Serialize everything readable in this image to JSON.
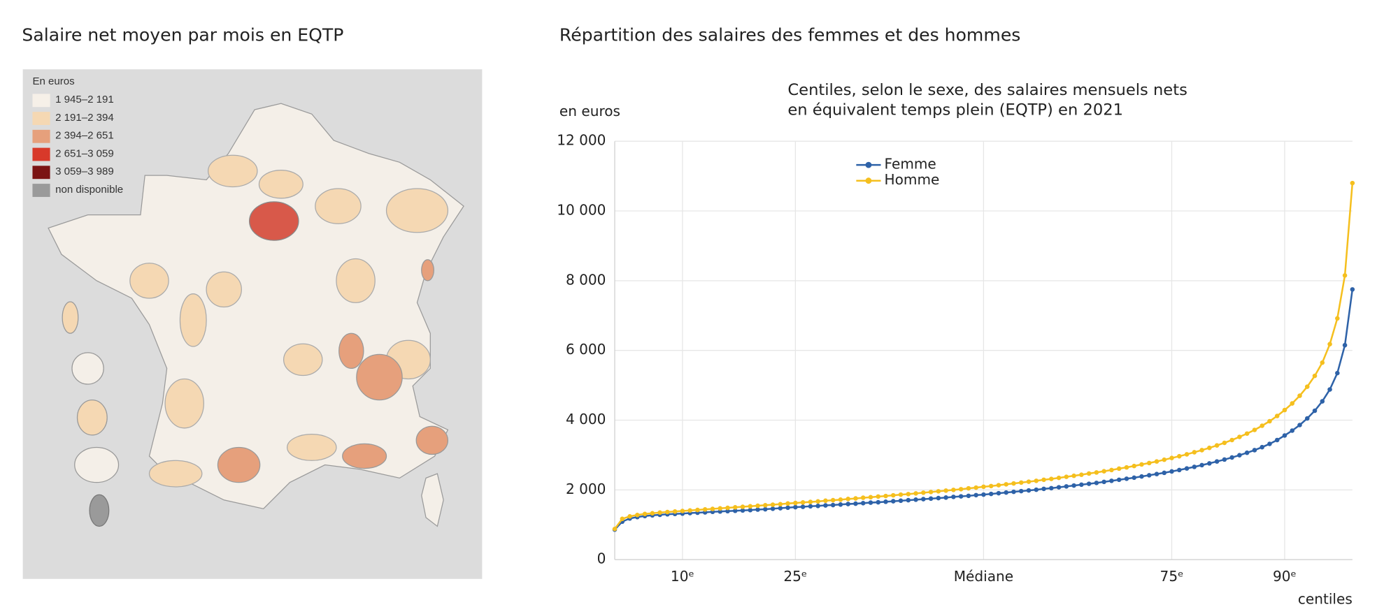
{
  "map": {
    "title": "Salaire net moyen par mois en EQTP",
    "legend": {
      "title": "En euros",
      "items": [
        {
          "label": "1 945–2 191",
          "color": "#f6f0e8"
        },
        {
          "label": "2 191–2 394",
          "color": "#f5d8b3"
        },
        {
          "label": "2 394–2 651",
          "color": "#e6a07c"
        },
        {
          "label": "2 651–3 059",
          "color": "#d8392a"
        },
        {
          "label": "3 059–3 989",
          "color": "#7b1414"
        },
        {
          "label": "non disponible",
          "color": "#9a9a9a"
        }
      ]
    }
  },
  "chart_data": {
    "type": "line",
    "title": "Répartition des salaires des femmes et des hommes",
    "subtitle": [
      "Centiles, selon le sexe, des salaires mensuels nets",
      "en équivalent temps plein (EQTP) en 2021"
    ],
    "y_label": "en euros",
    "x_label": "centiles",
    "x": [
      1,
      2,
      3,
      4,
      5,
      6,
      7,
      8,
      9,
      10,
      11,
      12,
      13,
      14,
      15,
      16,
      17,
      18,
      19,
      20,
      21,
      22,
      23,
      24,
      25,
      26,
      27,
      28,
      29,
      30,
      31,
      32,
      33,
      34,
      35,
      36,
      37,
      38,
      39,
      40,
      41,
      42,
      43,
      44,
      45,
      46,
      47,
      48,
      49,
      50,
      51,
      52,
      53,
      54,
      55,
      56,
      57,
      58,
      59,
      60,
      61,
      62,
      63,
      64,
      65,
      66,
      67,
      68,
      69,
      70,
      71,
      72,
      73,
      74,
      75,
      76,
      77,
      78,
      79,
      80,
      81,
      82,
      83,
      84,
      85,
      86,
      87,
      88,
      89,
      90,
      91,
      92,
      93,
      94,
      95,
      96,
      97,
      98,
      99
    ],
    "series": [
      {
        "name": "Femme",
        "color": "#2e62a8",
        "values": [
          860,
          1090,
          1180,
          1220,
          1250,
          1270,
          1285,
          1300,
          1310,
          1320,
          1335,
          1345,
          1355,
          1370,
          1380,
          1390,
          1400,
          1410,
          1420,
          1435,
          1445,
          1460,
          1475,
          1490,
          1505,
          1515,
          1530,
          1540,
          1555,
          1565,
          1580,
          1595,
          1605,
          1620,
          1635,
          1645,
          1660,
          1675,
          1690,
          1705,
          1720,
          1735,
          1750,
          1765,
          1780,
          1800,
          1815,
          1830,
          1850,
          1865,
          1885,
          1905,
          1925,
          1945,
          1965,
          1985,
          2005,
          2030,
          2050,
          2075,
          2100,
          2125,
          2150,
          2175,
          2200,
          2230,
          2260,
          2290,
          2320,
          2350,
          2385,
          2420,
          2455,
          2490,
          2530,
          2570,
          2615,
          2660,
          2710,
          2760,
          2815,
          2870,
          2930,
          2995,
          3065,
          3140,
          3225,
          3320,
          3430,
          3560,
          3700,
          3860,
          4050,
          4270,
          4540,
          4880,
          5350,
          6150,
          7750
        ]
      },
      {
        "name": "Homme",
        "color": "#f5bf1e",
        "values": [
          880,
          1170,
          1240,
          1280,
          1310,
          1330,
          1350,
          1365,
          1380,
          1395,
          1410,
          1425,
          1440,
          1455,
          1470,
          1485,
          1500,
          1515,
          1530,
          1545,
          1560,
          1575,
          1590,
          1610,
          1625,
          1640,
          1655,
          1670,
          1690,
          1705,
          1720,
          1740,
          1755,
          1775,
          1790,
          1810,
          1825,
          1845,
          1865,
          1880,
          1900,
          1920,
          1940,
          1960,
          1980,
          2000,
          2020,
          2045,
          2065,
          2090,
          2110,
          2135,
          2160,
          2185,
          2210,
          2235,
          2260,
          2290,
          2315,
          2345,
          2375,
          2405,
          2435,
          2470,
          2500,
          2535,
          2570,
          2610,
          2645,
          2685,
          2730,
          2770,
          2815,
          2865,
          2915,
          2965,
          3020,
          3080,
          3140,
          3205,
          3275,
          3350,
          3430,
          3520,
          3615,
          3720,
          3840,
          3970,
          4120,
          4290,
          4480,
          4700,
          4960,
          5270,
          5650,
          6180,
          6920,
          8150,
          10800
        ]
      }
    ],
    "xlim": [
      1,
      99
    ],
    "xticks": [
      {
        "value": 10,
        "label": "10ᵉ"
      },
      {
        "value": 25,
        "label": "25ᵉ"
      },
      {
        "value": 50,
        "label": "Médiane"
      },
      {
        "value": 75,
        "label": "75ᵉ"
      },
      {
        "value": 90,
        "label": "90ᵉ"
      }
    ],
    "ylim": [
      0,
      12000
    ],
    "yticks": [
      0,
      {
        "value": 2000,
        "label": "2 000"
      },
      {
        "value": 4000,
        "label": "4 000"
      },
      {
        "value": 6000,
        "label": "6 000"
      },
      {
        "value": 8000,
        "label": "8 000"
      },
      {
        "value": 10000,
        "label": "10 000"
      },
      {
        "value": 12000,
        "label": "12 000"
      }
    ],
    "grid": true,
    "legend": "top"
  }
}
